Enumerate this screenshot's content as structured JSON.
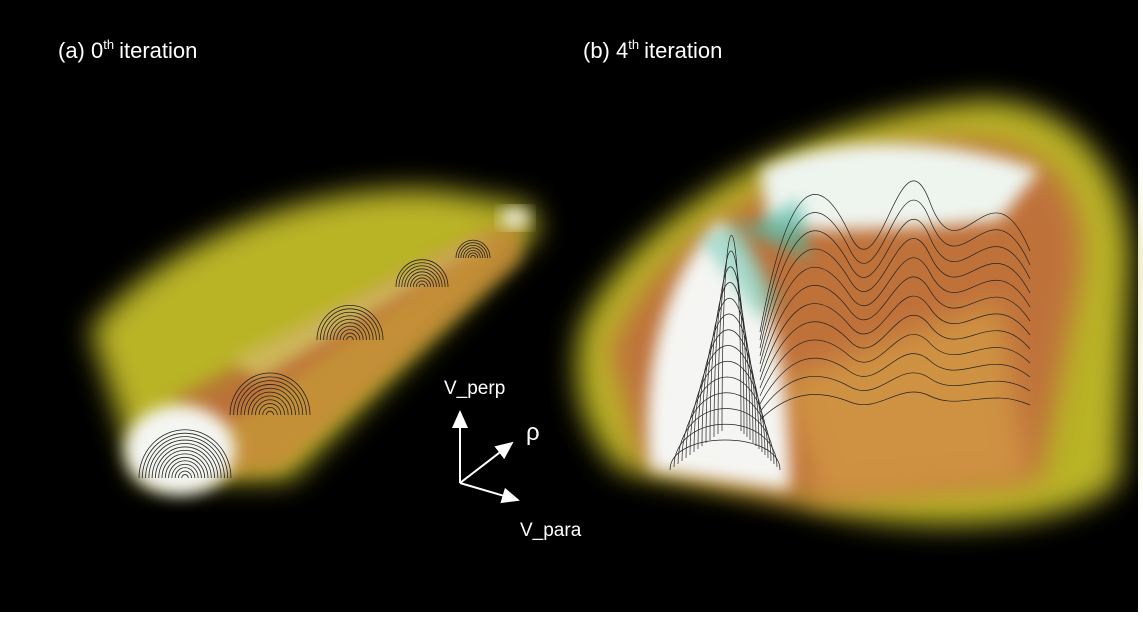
{
  "panels": [
    {
      "prefix": "(a) 0",
      "superscript": "th",
      "suffix": "iteration"
    },
    {
      "prefix": "(b) 4",
      "superscript": "th",
      "suffix": "iteration"
    }
  ],
  "axes": {
    "up": "V_perp",
    "diagonal": "ρ",
    "right": "V_para"
  }
}
